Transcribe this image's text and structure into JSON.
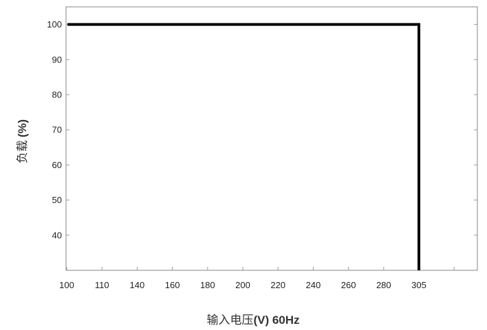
{
  "chart_data": {
    "type": "line",
    "xlabel_text": "输入电压",
    "xlabel_unit": "(V) 60Hz",
    "ylabel_text": "负载",
    "ylabel_unit": "(%)",
    "x_ticks": [
      "100",
      "110",
      "140",
      "160",
      "180",
      "200",
      "220",
      "240",
      "260",
      "280",
      "305"
    ],
    "y_ticks": [
      40,
      50,
      60,
      70,
      80,
      90,
      100
    ],
    "ylim": [
      30,
      105
    ],
    "grid": false,
    "series": [
      {
        "points": [
          {
            "x": "100",
            "y": 100
          },
          {
            "x": "305",
            "y": 100
          },
          {
            "x": "305",
            "y": 30
          }
        ]
      }
    ],
    "colors": {
      "line": "#000000",
      "frame": "#9a9a9a"
    }
  }
}
